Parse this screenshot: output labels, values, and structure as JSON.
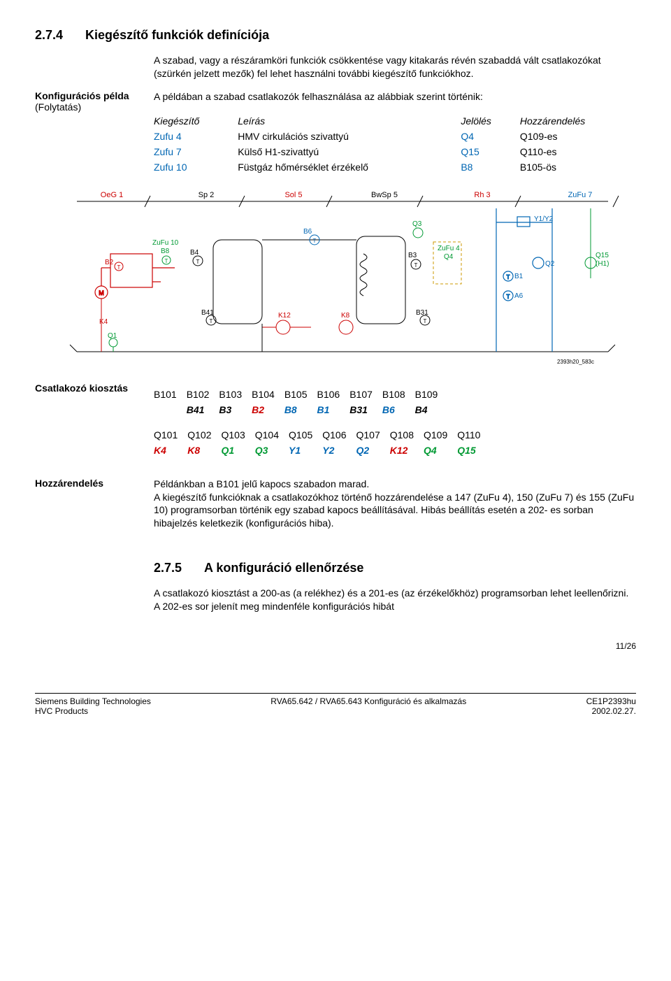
{
  "section1": {
    "num": "2.7.4",
    "title": "Kiegészítő funkciók definíciója"
  },
  "intro": "A szabad, vagy a részáramköri funkciók csökkentése vagy kitakarás révén szabaddá vált csatlakozókat (szürkén jelzett mezők) fel lehet használni további kiegészítő funkciókhoz.",
  "side1a": "Konfigurációs példa",
  "side1b": "(Folytatás)",
  "example_intro": "A példában a szabad csatlakozók felhasználása az alábbiak szerint történik:",
  "suppl_hdr": {
    "c1": "Kiegészítő",
    "c2": "Leírás",
    "c3": "Jelölés",
    "c4": "Hozzárendelés"
  },
  "suppl_rows": [
    {
      "c1": "Zufu 4",
      "c2": "HMV cirkulációs szivattyú",
      "c3": "Q4",
      "c4": "Q109-es"
    },
    {
      "c1": "Zufu 7",
      "c2": "Külső H1-szivattyú",
      "c3": "Q15",
      "c4": "Q110-es"
    },
    {
      "c1": "Zufu 10",
      "c2": "Füstgáz hőmérséklet érzékelő",
      "c3": "B8",
      "c4": "B105-ös"
    }
  ],
  "diagram": {
    "stroke_red": "#cc0000",
    "stroke_blue": "#0066b3",
    "stroke_green": "#009933",
    "stroke_dash": "#cc9900",
    "stroke_black": "#000000",
    "labels_top": [
      "OeG 1",
      "Sp 2",
      "Sol 5",
      "BwSp 5",
      "Rh 3",
      "ZuFu 7"
    ],
    "labels_top_colors": [
      "#cc0000",
      "#000000",
      "#cc0000",
      "#000000",
      "#cc0000",
      "#0066b3"
    ],
    "ref": "2393h20_583c"
  },
  "side2": "Csatlakozó kiosztás",
  "csat_b_hdr": [
    "B101",
    "B102",
    "B103",
    "B104",
    "B105",
    "B106",
    "B107",
    "B108",
    "B109",
    ""
  ],
  "csat_b_val": [
    {
      "t": "",
      "c": "#000"
    },
    {
      "t": "B41",
      "c": "#000"
    },
    {
      "t": "B3",
      "c": "#000"
    },
    {
      "t": "B2",
      "c": "#cc0000"
    },
    {
      "t": "B8",
      "c": "#0066b3"
    },
    {
      "t": "B1",
      "c": "#0066b3"
    },
    {
      "t": "B31",
      "c": "#000"
    },
    {
      "t": "B6",
      "c": "#0066b3"
    },
    {
      "t": "B4",
      "c": "#000"
    },
    {
      "t": "",
      "c": "#000"
    }
  ],
  "csat_q_hdr": [
    "Q101",
    "Q102",
    "Q103",
    "Q104",
    "Q105",
    "Q106",
    "Q107",
    "Q108",
    "Q109",
    "Q110"
  ],
  "csat_q_val": [
    {
      "t": "K4",
      "c": "#cc0000"
    },
    {
      "t": "K8",
      "c": "#cc0000"
    },
    {
      "t": "Q1",
      "c": "#009933"
    },
    {
      "t": "Q3",
      "c": "#009933"
    },
    {
      "t": "Y1",
      "c": "#0066b3"
    },
    {
      "t": "Y2",
      "c": "#0066b3"
    },
    {
      "t": "Q2",
      "c": "#0066b3"
    },
    {
      "t": "K12",
      "c": "#cc0000"
    },
    {
      "t": "Q4",
      "c": "#009933"
    },
    {
      "t": "Q15",
      "c": "#009933"
    }
  ],
  "side3": "Hozzárendelés",
  "assign_text": "Példánkban a B101 jelű kapocs szabadon marad.\nA kiegészítő funkcióknak a csatlakozókhoz történő hozzárendelése a 147 (ZuFu 4), 150 (ZuFu 7) és 155 (ZuFu 10) programsorban történik egy szabad kapocs beállításával. Hibás beállítás esetén a 202- es sorban hibajelzés keletkezik (konfigurációs hiba).",
  "section2": {
    "num": "2.7.5",
    "title": "A konfiguráció ellenőrzése"
  },
  "check_text": "A csatlakozó kiosztást a 200-as (a relékhez) és a 201-es (az érzékelőkhöz) programsorban lehet leellenőrizni. A 202-es sor jelenít meg mindenféle konfigurációs hibát",
  "pagecount": "11/26",
  "footer": {
    "l1": "Siemens Building Technologies",
    "l2": "HVC Products",
    "c": "RVA65.642 / RVA65.643 Konfiguráció és alkalmazás",
    "r1": "CE1P2393hu",
    "r2": "2002.02.27."
  }
}
